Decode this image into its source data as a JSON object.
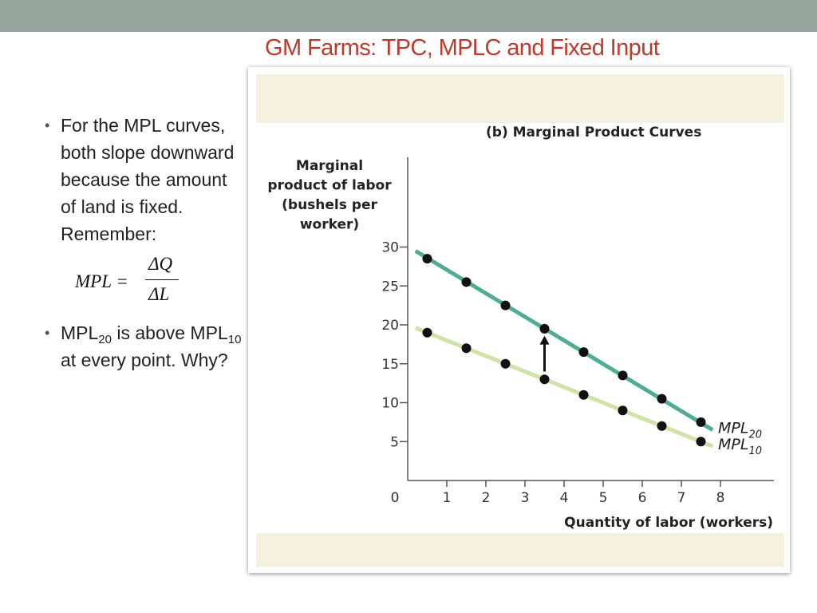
{
  "slide": {
    "title": "GM Farms:  TPC, MPLC and Fixed Input",
    "bullet1": "For the MPL curves, both slope downward because the amount of land is fixed. Remember:",
    "formula": {
      "lhs": "MPL =",
      "numerator": "ΔQ",
      "denominator": "ΔL"
    },
    "bullet2": {
      "a": "MPL",
      "sub_a": "20",
      "b": " is above MPL",
      "sub_b": "10",
      "c": " at every point.  Why?"
    }
  },
  "colors": {
    "title": "#c0392b",
    "mpl20": "#4dae91",
    "mpl10": "#cfe3a4",
    "dots": "#111111",
    "band": "#f4f2df",
    "topbar": "#97a69c"
  },
  "chart_data": {
    "type": "line",
    "title": "(b)  Marginal Product Curves",
    "ylabel_lines": [
      "Marginal",
      "product of labor",
      "(bushels per",
      "worker)"
    ],
    "xlabel": "Quantity of labor (workers)",
    "xlim": [
      0,
      8
    ],
    "ylim": [
      0,
      30
    ],
    "xticks": [
      1,
      2,
      3,
      4,
      5,
      6,
      7,
      8
    ],
    "yticks": [
      5,
      10,
      15,
      20,
      25,
      30
    ],
    "origin_label": "0",
    "grid": false,
    "series": [
      {
        "name": "MPL",
        "sub": "20",
        "x": [
          0.5,
          1.5,
          2.5,
          3.5,
          4.5,
          5.5,
          6.5,
          7.5
        ],
        "values": [
          28.5,
          25.5,
          22.5,
          19.5,
          16.5,
          13.5,
          10.5,
          7.5
        ],
        "line_x": [
          0.2,
          7.8
        ],
        "line_y": [
          29.5,
          6.5
        ],
        "color": "#4dae91"
      },
      {
        "name": "MPL",
        "sub": "10",
        "x": [
          0.5,
          1.5,
          2.5,
          3.5,
          4.5,
          5.5,
          6.5,
          7.5
        ],
        "values": [
          19,
          17,
          15,
          13,
          11,
          9,
          7,
          5
        ],
        "line_x": [
          0.2,
          7.8
        ],
        "line_y": [
          19.6,
          4.4
        ],
        "color": "#cfe3a4"
      }
    ],
    "annotation": {
      "type": "arrow",
      "x": 3.5,
      "from": 14.0,
      "to": 18.6
    }
  }
}
